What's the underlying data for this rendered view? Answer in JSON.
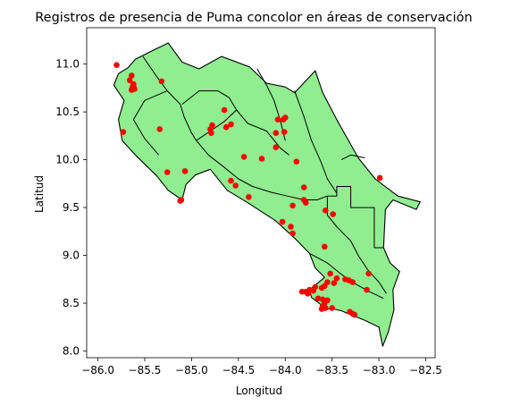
{
  "chart_data": {
    "type": "scatter",
    "title": "Registros de presencia de Puma concolor en áreas de conservación",
    "xlabel": "Longitud",
    "ylabel": "Latitud",
    "xlim": [
      -86.12,
      -82.4
    ],
    "ylim": [
      7.93,
      11.38
    ],
    "xticks": [
      -86.0,
      -85.5,
      -85.0,
      -84.5,
      -84.0,
      -83.5,
      -83.0,
      -82.5
    ],
    "xtick_labels": [
      "−86.0",
      "−85.5",
      "−85.0",
      "−84.5",
      "−84.0",
      "−83.5",
      "−83.0",
      "−82.5"
    ],
    "yticks": [
      8.0,
      8.5,
      9.0,
      9.5,
      10.0,
      10.5,
      11.0
    ],
    "ytick_labels": [
      "8.0",
      "8.5",
      "9.0",
      "9.5",
      "10.0",
      "10.5",
      "11.0"
    ],
    "grid": false,
    "colors": {
      "land": "#90ee90",
      "outline": "#000000",
      "points": "#ff0000"
    },
    "outline": [
      [
        -85.78,
        10.9
      ],
      [
        -85.68,
        10.96
      ],
      [
        -85.6,
        11.05
      ],
      [
        -85.42,
        11.14
      ],
      [
        -85.25,
        11.22
      ],
      [
        -85.1,
        11.02
      ],
      [
        -84.92,
        10.95
      ],
      [
        -84.68,
        11.08
      ],
      [
        -84.38,
        10.97
      ],
      [
        -84.2,
        10.8
      ],
      [
        -84.0,
        10.76
      ],
      [
        -83.9,
        10.7
      ],
      [
        -83.68,
        10.93
      ],
      [
        -83.6,
        10.7
      ],
      [
        -83.44,
        10.4
      ],
      [
        -83.22,
        10.02
      ],
      [
        -83.04,
        9.8
      ],
      [
        -82.8,
        9.62
      ],
      [
        -82.56,
        9.56
      ],
      [
        -82.6,
        9.48
      ],
      [
        -82.85,
        9.58
      ],
      [
        -82.93,
        9.48
      ],
      [
        -82.95,
        9.08
      ],
      [
        -82.88,
        8.92
      ],
      [
        -82.78,
        8.83
      ],
      [
        -82.85,
        8.64
      ],
      [
        -82.84,
        8.43
      ],
      [
        -82.9,
        8.2
      ],
      [
        -82.96,
        8.05
      ],
      [
        -83.0,
        8.25
      ],
      [
        -83.15,
        8.32
      ],
      [
        -83.3,
        8.38
      ],
      [
        -83.4,
        8.42
      ],
      [
        -83.48,
        8.44
      ],
      [
        -83.56,
        8.44
      ],
      [
        -83.72,
        8.56
      ],
      [
        -83.74,
        8.64
      ],
      [
        -83.58,
        8.77
      ],
      [
        -83.68,
        8.87
      ],
      [
        -83.74,
        9.02
      ],
      [
        -83.9,
        9.18
      ],
      [
        -84.1,
        9.36
      ],
      [
        -84.4,
        9.55
      ],
      [
        -84.62,
        9.68
      ],
      [
        -84.8,
        9.9
      ],
      [
        -84.96,
        9.84
      ],
      [
        -85.06,
        9.74
      ],
      [
        -85.1,
        9.58
      ],
      [
        -85.25,
        9.68
      ],
      [
        -85.37,
        9.83
      ],
      [
        -85.6,
        10.05
      ],
      [
        -85.74,
        10.2
      ],
      [
        -85.78,
        10.42
      ],
      [
        -85.72,
        10.62
      ],
      [
        -85.83,
        10.78
      ],
      [
        -85.78,
        10.9
      ]
    ],
    "internal_borders": [
      [
        [
          -85.52,
          11.08
        ],
        [
          -85.38,
          10.88
        ],
        [
          -85.26,
          10.72
        ],
        [
          -85.12,
          10.58
        ],
        [
          -85.08,
          10.45
        ],
        [
          -85.0,
          10.28
        ],
        [
          -84.95,
          10.2
        ]
      ],
      [
        [
          -85.26,
          10.72
        ],
        [
          -85.5,
          10.62
        ],
        [
          -85.62,
          10.42
        ],
        [
          -85.5,
          10.22
        ],
        [
          -85.35,
          10.05
        ]
      ],
      [
        [
          -85.1,
          10.58
        ],
        [
          -84.92,
          10.72
        ],
        [
          -84.72,
          10.72
        ],
        [
          -84.6,
          10.65
        ],
        [
          -84.52,
          10.52
        ],
        [
          -84.4,
          10.38
        ],
        [
          -84.2,
          10.3
        ],
        [
          -84.05,
          10.12
        ],
        [
          -83.96,
          10.05
        ]
      ],
      [
        [
          -84.95,
          10.2
        ],
        [
          -84.8,
          10.3
        ],
        [
          -84.65,
          10.4
        ],
        [
          -84.52,
          10.52
        ]
      ],
      [
        [
          -84.95,
          10.2
        ],
        [
          -84.82,
          10.05
        ],
        [
          -84.65,
          9.92
        ],
        [
          -84.5,
          9.8
        ],
        [
          -84.35,
          9.72
        ],
        [
          -84.15,
          9.66
        ],
        [
          -83.98,
          9.62
        ],
        [
          -83.8,
          9.58
        ],
        [
          -83.66,
          9.58
        ],
        [
          -83.55,
          9.62
        ]
      ],
      [
        [
          -84.3,
          10.95
        ],
        [
          -84.2,
          10.78
        ],
        [
          -84.12,
          10.62
        ],
        [
          -84.05,
          10.4
        ],
        [
          -84.0,
          10.2
        ]
      ],
      [
        [
          -83.9,
          10.72
        ],
        [
          -83.8,
          10.45
        ],
        [
          -83.72,
          10.2
        ],
        [
          -83.62,
          9.98
        ],
        [
          -83.55,
          9.8
        ],
        [
          -83.45,
          9.65
        ]
      ],
      [
        [
          -83.4,
          10.0
        ],
        [
          -83.3,
          10.05
        ],
        [
          -83.15,
          10.02
        ]
      ],
      [
        [
          -83.55,
          9.62
        ],
        [
          -83.55,
          9.42
        ],
        [
          -83.45,
          9.3
        ],
        [
          -83.3,
          9.15
        ],
        [
          -83.22,
          9.0
        ],
        [
          -83.12,
          8.85
        ],
        [
          -83.0,
          8.72
        ],
        [
          -82.92,
          8.6
        ]
      ],
      [
        [
          -83.74,
          9.02
        ],
        [
          -83.55,
          8.92
        ],
        [
          -83.4,
          8.8
        ],
        [
          -83.25,
          8.7
        ],
        [
          -83.1,
          8.62
        ],
        [
          -82.95,
          8.55
        ]
      ],
      [
        [
          -83.55,
          9.62
        ],
        [
          -83.45,
          9.62
        ],
        [
          -83.45,
          9.72
        ],
        [
          -83.3,
          9.72
        ],
        [
          -83.3,
          9.5
        ],
        [
          -83.05,
          9.5
        ],
        [
          -83.05,
          9.08
        ],
        [
          -82.95,
          9.08
        ]
      ]
    ],
    "points": [
      [
        -85.8,
        10.99
      ],
      [
        -85.64,
        10.88
      ],
      [
        -85.66,
        10.83
      ],
      [
        -85.62,
        10.79
      ],
      [
        -85.63,
        10.76
      ],
      [
        -85.61,
        10.74
      ],
      [
        -85.64,
        10.73
      ],
      [
        -85.62,
        10.77
      ],
      [
        -85.32,
        10.82
      ],
      [
        -85.73,
        10.29
      ],
      [
        -85.34,
        10.32
      ],
      [
        -85.26,
        9.87
      ],
      [
        -85.07,
        9.88
      ],
      [
        -85.11,
        9.58
      ],
      [
        -85.12,
        9.57
      ],
      [
        -84.65,
        10.52
      ],
      [
        -84.58,
        10.37
      ],
      [
        -84.63,
        10.34
      ],
      [
        -84.78,
        10.36
      ],
      [
        -84.8,
        10.32
      ],
      [
        -84.79,
        10.28
      ],
      [
        -84.08,
        10.42
      ],
      [
        -84.02,
        10.42
      ],
      [
        -84.0,
        10.44
      ],
      [
        -84.1,
        10.28
      ],
      [
        -84.01,
        10.29
      ],
      [
        -84.1,
        10.13
      ],
      [
        -84.44,
        10.03
      ],
      [
        -84.25,
        10.01
      ],
      [
        -83.88,
        9.98
      ],
      [
        -84.58,
        9.78
      ],
      [
        -84.53,
        9.73
      ],
      [
        -84.39,
        9.61
      ],
      [
        -83.8,
        9.71
      ],
      [
        -83.8,
        9.58
      ],
      [
        -83.78,
        9.55
      ],
      [
        -83.92,
        9.52
      ],
      [
        -83.57,
        9.47
      ],
      [
        -83.49,
        9.43
      ],
      [
        -84.03,
        9.35
      ],
      [
        -83.94,
        9.3
      ],
      [
        -83.92,
        9.23
      ],
      [
        -83.58,
        9.09
      ],
      [
        -82.99,
        9.81
      ],
      [
        -83.11,
        8.81
      ],
      [
        -83.52,
        8.81
      ],
      [
        -83.45,
        8.76
      ],
      [
        -83.36,
        8.75
      ],
      [
        -83.32,
        8.74
      ],
      [
        -83.28,
        8.72
      ],
      [
        -83.48,
        8.71
      ],
      [
        -83.55,
        8.72
      ],
      [
        -83.58,
        8.68
      ],
      [
        -83.61,
        8.66
      ],
      [
        -83.68,
        8.67
      ],
      [
        -83.7,
        8.63
      ],
      [
        -83.74,
        8.64
      ],
      [
        -83.78,
        8.62
      ],
      [
        -83.76,
        8.6
      ],
      [
        -83.82,
        8.62
      ],
      [
        -83.65,
        8.55
      ],
      [
        -83.6,
        8.54
      ],
      [
        -83.55,
        8.53
      ],
      [
        -83.58,
        8.5
      ],
      [
        -83.6,
        8.47
      ],
      [
        -83.57,
        8.45
      ],
      [
        -83.5,
        8.45
      ],
      [
        -83.61,
        8.44
      ],
      [
        -83.13,
        8.64
      ],
      [
        -83.31,
        8.41
      ],
      [
        -83.28,
        8.39
      ],
      [
        -83.26,
        8.38
      ]
    ]
  }
}
